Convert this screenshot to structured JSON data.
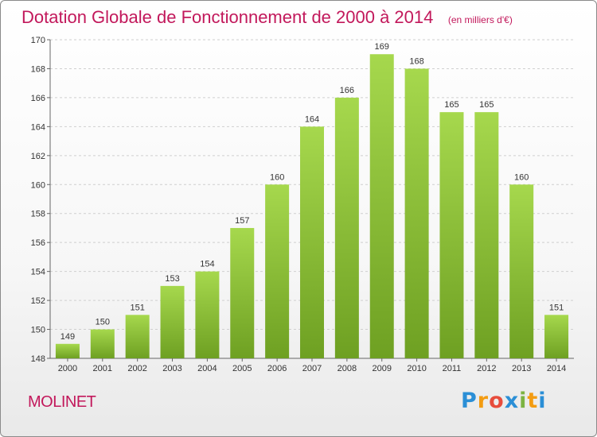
{
  "header": {
    "title": "Dotation Globale de Fonctionnement de 2000 à 2014",
    "subtitle": "(en milliers d'€)"
  },
  "footer": {
    "commune": "MOLINET",
    "brand_letters": [
      "P",
      "r",
      "o",
      "x",
      "i",
      "t",
      "i"
    ],
    "brand_colors": [
      "#2b8fd6",
      "#f39c12",
      "#e74c3c",
      "#2b8fd6",
      "#7cb342",
      "#f39c12",
      "#2b8fd6"
    ]
  },
  "colors": {
    "bar_light": "#a6d84d",
    "bar_dark": "#6ea022",
    "accent": "#c2185b"
  },
  "chart_data": {
    "type": "bar",
    "title": "Dotation Globale de Fonctionnement de 2000 à 2014",
    "subtitle": "(en milliers d'€)",
    "xlabel": "",
    "ylabel": "",
    "categories": [
      "2000",
      "2001",
      "2002",
      "2003",
      "2004",
      "2005",
      "2006",
      "2007",
      "2008",
      "2009",
      "2010",
      "2011",
      "2012",
      "2013",
      "2014"
    ],
    "values": [
      149,
      150,
      151,
      153,
      154,
      157,
      160,
      164,
      166,
      169,
      168,
      165,
      165,
      160,
      151
    ],
    "ylim": [
      148,
      170
    ],
    "yticks": [
      148,
      150,
      152,
      154,
      156,
      158,
      160,
      162,
      164,
      166,
      168,
      170
    ],
    "grid": "horizontal-dashed",
    "legend": "none"
  }
}
